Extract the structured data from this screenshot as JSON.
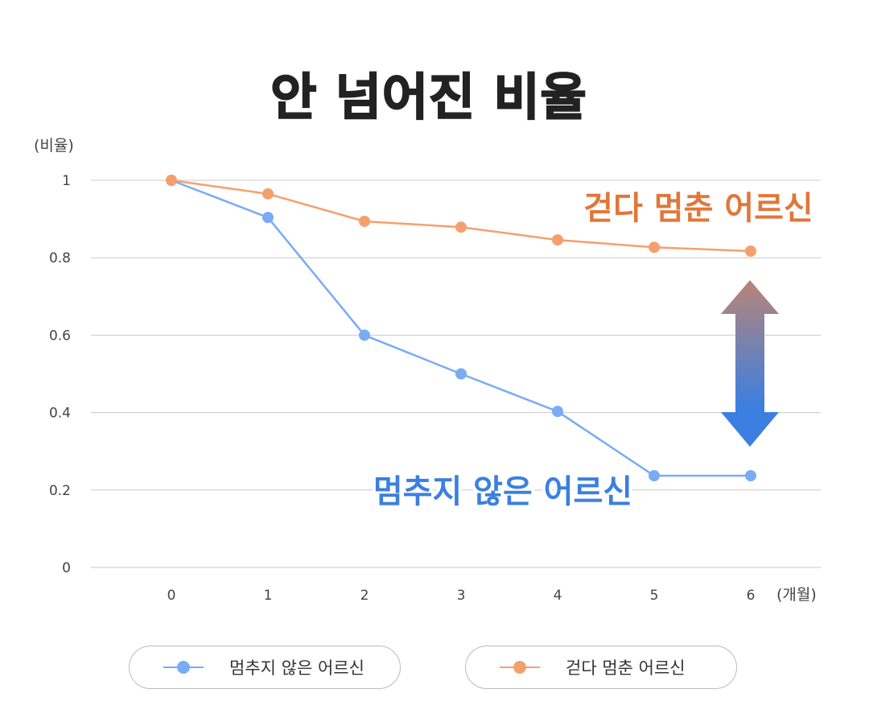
{
  "title": "안 넘어진 비율",
  "chart_data": {
    "type": "line",
    "title": "안 넘어진 비율",
    "ylabel": "(비율)",
    "xlabel": "(개월)",
    "x": [
      0,
      1,
      2,
      3,
      4,
      5,
      6
    ],
    "ylim": [
      0,
      1
    ],
    "yticks": [
      "0",
      "0.2",
      "0.4",
      "0.6",
      "0.8",
      "1"
    ],
    "xticks": [
      "0",
      "1",
      "2",
      "3",
      "4",
      "5",
      "6"
    ],
    "grid": true,
    "legend_placement": "bottom",
    "series": [
      {
        "name": "멈추지 않은 어르신",
        "color": "#7aabf5",
        "label_color": "#3b7fe0",
        "values": [
          1,
          0.904,
          0.6,
          0.5,
          0.403,
          0.237,
          0.237
        ]
      },
      {
        "name": "걷다 멈춘 어르신",
        "color": "#f4a06e",
        "label_color": "#e0773a",
        "values": [
          1,
          0.965,
          0.894,
          0.879,
          0.846,
          0.827,
          0.817
        ]
      }
    ],
    "annotations": [
      "걷다 멈춘 어르신",
      "멈추지 않은 어르신"
    ]
  }
}
